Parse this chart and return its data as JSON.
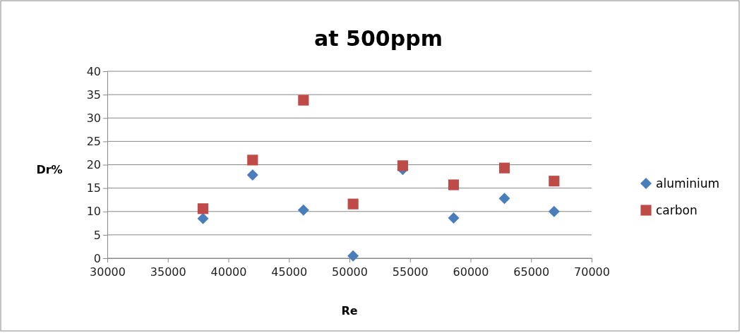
{
  "chart_data": {
    "type": "scatter",
    "title": "at 500ppm",
    "xlabel": "Re",
    "ylabel": "Dr%",
    "xlim": [
      30000,
      70000
    ],
    "xticks": [
      30000,
      35000,
      40000,
      45000,
      50000,
      55000,
      60000,
      65000,
      70000
    ],
    "ylim": [
      0,
      40
    ],
    "yticks": [
      0,
      5,
      10,
      15,
      20,
      25,
      30,
      35,
      40
    ],
    "grid": "y",
    "legend": "right",
    "series": [
      {
        "name": "aluminium",
        "color": "#4a7ebb",
        "marker": "diamond",
        "x": [
          37900,
          42000,
          46200,
          50300,
          54400,
          58600,
          62800,
          66900
        ],
        "values": [
          8.5,
          17.8,
          10.3,
          0.5,
          19.0,
          8.6,
          12.8,
          10.0
        ]
      },
      {
        "name": "carbon",
        "color": "#be4b48",
        "marker": "square",
        "x": [
          37900,
          42000,
          46200,
          50300,
          54400,
          58600,
          62800,
          66900
        ],
        "values": [
          10.6,
          21.0,
          33.8,
          11.6,
          19.8,
          15.7,
          19.3,
          16.5
        ]
      }
    ]
  }
}
